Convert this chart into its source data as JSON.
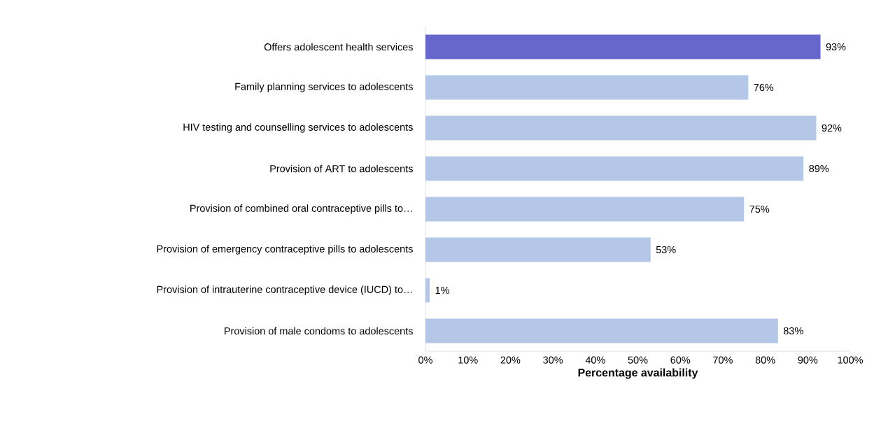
{
  "chart_data": {
    "type": "bar",
    "orientation": "horizontal",
    "xlabel": "Percentage availability",
    "categories": [
      "Offers adolescent health services",
      "Family planning services to adolescents",
      "HIV testing and counselling services to adolescents",
      "Provision of ART to adolescents",
      "Provision of combined oral contraceptive pills to…",
      "Provision of emergency contraceptive pills to adolescents",
      "Provision of intrauterine contraceptive device (IUCD) to…",
      "Provision of male condoms to adolescents"
    ],
    "values": [
      93,
      76,
      92,
      89,
      75,
      53,
      1,
      83
    ],
    "value_labels": [
      "93%",
      "76%",
      "92%",
      "89%",
      "75%",
      "53%",
      "1%",
      "83%"
    ],
    "colors": [
      "#6666cc",
      "#b4c7e7",
      "#b4c7e7",
      "#b4c7e7",
      "#b4c7e7",
      "#b4c7e7",
      "#b4c7e7",
      "#b4c7e7"
    ],
    "xlim": [
      0,
      100
    ],
    "xticks": [
      {
        "value": 0,
        "label": "0%"
      },
      {
        "value": 10,
        "label": "10%"
      },
      {
        "value": 20,
        "label": "20%"
      },
      {
        "value": 30,
        "label": "30%"
      },
      {
        "value": 40,
        "label": "40%"
      },
      {
        "value": 50,
        "label": "50%"
      },
      {
        "value": 60,
        "label": "60%"
      },
      {
        "value": 70,
        "label": "70%"
      },
      {
        "value": 80,
        "label": "80%"
      },
      {
        "value": 90,
        "label": "90%"
      },
      {
        "value": 100,
        "label": "100%"
      }
    ]
  }
}
